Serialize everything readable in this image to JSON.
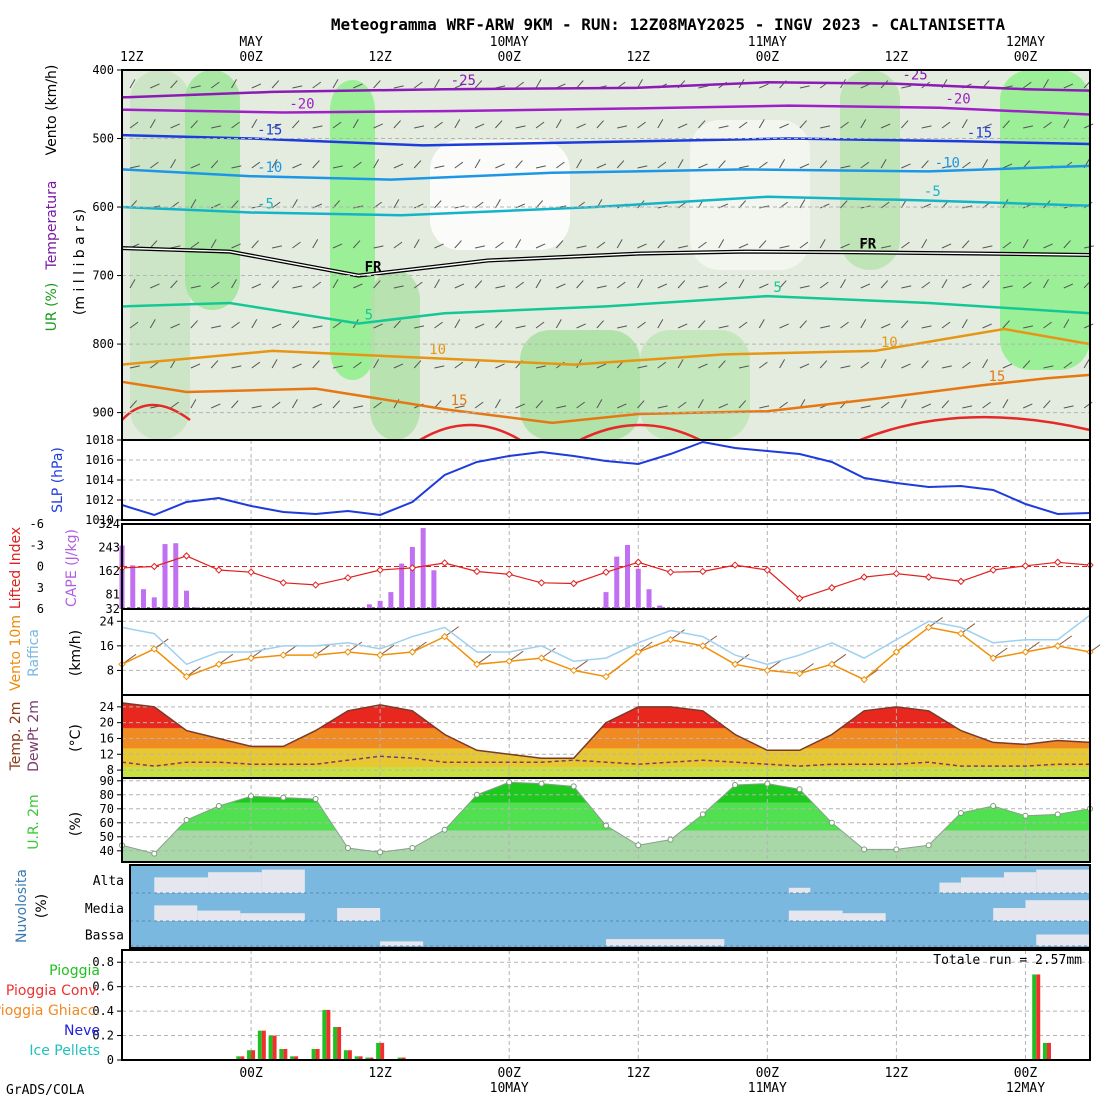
{
  "header": {
    "title": "Meteogramma WRF-ARW 9KM - RUN: 12Z08MAY2025 - INGV 2023 - CALTANISETTA",
    "footer": "GrADS/COLA"
  },
  "colors": {
    "panel_border": "#000000",
    "grid": "#b4b4b4",
    "slp": "#1e3cdc",
    "lifted": "#e02020",
    "cape": "#c070f0",
    "wind": "#f0900a",
    "gust": "#9fd0f0",
    "arrow": "#8a5a3a",
    "temp_top": "#e8281e",
    "temp_mid": "#f08a22",
    "temp_low": "#e8c832",
    "temp_base": "#c8e040",
    "dewpt": "#7a3c6c",
    "rh_top": "#1fc81f",
    "rh_mid": "#50e050",
    "rh_low": "#a8d8a8",
    "cloud_bg": "#7ab8e0",
    "cloud_fill": "#e6e6ee",
    "rain": "#20c020",
    "rain_conv": "#f03030",
    "freezing": "#f08a22",
    "snow": "#2020e0",
    "ice": "#20c0c0"
  },
  "time_axis": {
    "top_labels": [
      {
        "t": 0,
        "text": "12Z",
        "sub": ""
      },
      {
        "t": 12,
        "text": "00Z",
        "sub": "MAY"
      },
      {
        "t": 24,
        "text": "12Z",
        "sub": ""
      },
      {
        "t": 36,
        "text": "00Z",
        "sub": "10MAY"
      },
      {
        "t": 48,
        "text": "12Z",
        "sub": ""
      },
      {
        "t": 60,
        "text": "00Z",
        "sub": "11MAY"
      },
      {
        "t": 72,
        "text": "12Z",
        "sub": ""
      },
      {
        "t": 84,
        "text": "00Z",
        "sub": "12MAY"
      }
    ],
    "bottom_labels": [
      {
        "t": 12,
        "text": "00Z",
        "sub": ""
      },
      {
        "t": 24,
        "text": "12Z",
        "sub": ""
      },
      {
        "t": 36,
        "text": "00Z",
        "sub": "10MAY"
      },
      {
        "t": 48,
        "text": "12Z",
        "sub": ""
      },
      {
        "t": 60,
        "text": "00Z",
        "sub": "11MAY"
      },
      {
        "t": 72,
        "text": "12Z",
        "sub": ""
      },
      {
        "t": 84,
        "text": "00Z",
        "sub": "12MAY"
      }
    ],
    "range_hours": [
      0,
      90
    ]
  },
  "labels": {
    "upper": {
      "vento": "Vento (km/h)",
      "temp": "Temperatura",
      "ur": "UR (%)",
      "millibars": "(m i l l i b a r s)"
    },
    "slp": "SLP (hPa)",
    "li": "Lifted Index",
    "cape": "CAPE (J/kg)",
    "wind_a": "Vento 10m",
    "wind_b": "Raffica",
    "wind_u": "(km/h)",
    "temp_a": "Temp. 2m",
    "temp_b": "DewPt 2m",
    "temp_u": "(°C)",
    "rh": "U.R. 2m",
    "rh_u": "(%)",
    "cloud_title": "Nuvolosita",
    "cloud_u": "(%)",
    "cloud_levels": [
      "Alta",
      "Media",
      "Bassa"
    ],
    "precip_legend": [
      "Pioggia",
      "Pioggia Conv.",
      "Pioggia Ghiacc.",
      "Neve",
      "Ice Pellets"
    ],
    "precip_total": "Totale run = 2.57mm"
  },
  "chart_data": [
    {
      "type": "heatmap",
      "panel": "upper-air",
      "ylabel": "millibars",
      "ylim": [
        940,
        400
      ],
      "yticks": [
        400,
        500,
        600,
        700,
        800,
        900
      ],
      "isotherms": [
        {
          "value": -25,
          "label": "-25",
          "points": [
            [
              0,
              440
            ],
            [
              14,
              432
            ],
            [
              30,
              428
            ],
            [
              48,
              426
            ],
            [
              60,
              418
            ],
            [
              72,
              420
            ],
            [
              84,
              428
            ],
            [
              90,
              430
            ]
          ]
        },
        {
          "value": -20,
          "label": "-20",
          "points": [
            [
              0,
              458
            ],
            [
              15,
              462
            ],
            [
              30,
              460
            ],
            [
              48,
              456
            ],
            [
              62,
              452
            ],
            [
              76,
              455
            ],
            [
              90,
              465
            ]
          ]
        },
        {
          "value": -15,
          "label": "-15",
          "points": [
            [
              0,
              495
            ],
            [
              12,
              500
            ],
            [
              28,
              510
            ],
            [
              45,
              505
            ],
            [
              62,
              500
            ],
            [
              78,
              504
            ],
            [
              90,
              508
            ]
          ]
        },
        {
          "value": -10,
          "label": "-10",
          "points": [
            [
              0,
              545
            ],
            [
              12,
              555
            ],
            [
              25,
              560
            ],
            [
              40,
              550
            ],
            [
              58,
              545
            ],
            [
              75,
              548
            ],
            [
              90,
              540
            ]
          ]
        },
        {
          "value": -5,
          "label": "-5",
          "points": [
            [
              0,
              600
            ],
            [
              12,
              608
            ],
            [
              26,
              612
            ],
            [
              44,
              600
            ],
            [
              60,
              585
            ],
            [
              74,
              590
            ],
            [
              90,
              598
            ]
          ]
        },
        {
          "value": 0,
          "label": "FR",
          "points": [
            [
              0,
              660
            ],
            [
              10,
              665
            ],
            [
              22,
              700
            ],
            [
              34,
              678
            ],
            [
              48,
              668
            ],
            [
              58,
              665
            ],
            [
              68,
              666
            ],
            [
              80,
              668
            ],
            [
              90,
              670
            ]
          ]
        },
        {
          "value": 5,
          "label": "5",
          "points": [
            [
              0,
              745
            ],
            [
              10,
              740
            ],
            [
              22,
              770
            ],
            [
              30,
              755
            ],
            [
              45,
              745
            ],
            [
              60,
              730
            ],
            [
              75,
              740
            ],
            [
              90,
              755
            ]
          ]
        },
        {
          "value": 10,
          "label": "10",
          "points": [
            [
              0,
              830
            ],
            [
              14,
              810
            ],
            [
              28,
              820
            ],
            [
              42,
              830
            ],
            [
              56,
              815
            ],
            [
              70,
              810
            ],
            [
              82,
              778
            ],
            [
              90,
              800
            ]
          ]
        },
        {
          "value": 15,
          "label": "15",
          "points": [
            [
              0,
              855
            ],
            [
              6,
              870
            ],
            [
              18,
              865
            ],
            [
              30,
              895
            ],
            [
              40,
              915
            ],
            [
              48,
              902
            ],
            [
              60,
              898
            ],
            [
              70,
              880
            ],
            [
              80,
              860
            ],
            [
              86,
              850
            ],
            [
              90,
              845
            ]
          ]
        }
      ]
    },
    {
      "type": "line",
      "panel": "slp",
      "ylabel": "SLP (hPa)",
      "ylim": [
        1010,
        1018
      ],
      "yticks": [
        1010,
        1012,
        1014,
        1016,
        1018
      ],
      "x": [
        0,
        3,
        6,
        9,
        12,
        15,
        18,
        21,
        24,
        27,
        30,
        33,
        36,
        39,
        42,
        45,
        48,
        51,
        54,
        57,
        60,
        63,
        66,
        69,
        72,
        75,
        78,
        81,
        84,
        87,
        90
      ],
      "values": [
        1011.5,
        1010.5,
        1011.8,
        1012.2,
        1011.4,
        1010.8,
        1010.6,
        1010.9,
        1010.5,
        1011.8,
        1014.5,
        1015.8,
        1016.4,
        1016.8,
        1016.4,
        1015.9,
        1015.6,
        1016.6,
        1017.8,
        1017.2,
        1016.9,
        1016.6,
        1015.8,
        1014.2,
        1013.7,
        1013.3,
        1013.4,
        1013.0,
        1011.6,
        1010.6,
        1010.7
      ]
    },
    {
      "type": "bar",
      "panel": "cape",
      "ylabel": "CAPE (J/kg)",
      "ylim": [
        32,
        324
      ],
      "yticks": [
        32,
        81,
        162,
        243,
        324
      ],
      "x": [
        0,
        1,
        2,
        3,
        4,
        5,
        6,
        7,
        8,
        20,
        23,
        24,
        25,
        26,
        27,
        28,
        29,
        45,
        46,
        47,
        48,
        49,
        50
      ],
      "values": [
        250,
        182,
        100,
        72,
        255,
        258,
        95,
        38,
        33,
        33,
        48,
        60,
        90,
        188,
        245,
        310,
        165,
        90,
        212,
        252,
        170,
        100,
        44
      ]
    },
    {
      "type": "line",
      "panel": "lifted-index",
      "ylabel": "Lifted Index",
      "ylim": [
        6,
        -6
      ],
      "yticks": [
        -6,
        -3,
        0,
        3,
        6
      ],
      "x": [
        0,
        3,
        6,
        9,
        12,
        15,
        18,
        21,
        24,
        27,
        30,
        33,
        36,
        39,
        42,
        45,
        48,
        51,
        54,
        57,
        60,
        63,
        66,
        69,
        72,
        75,
        78,
        81,
        84,
        87,
        90
      ],
      "values": [
        0.2,
        0.0,
        -1.5,
        0.5,
        0.8,
        2.3,
        2.6,
        1.6,
        0.5,
        0.2,
        -0.5,
        0.7,
        1.1,
        2.3,
        2.4,
        0.8,
        -0.6,
        0.8,
        0.7,
        -0.2,
        0.5,
        4.5,
        3.0,
        1.5,
        1.0,
        1.5,
        2.1,
        0.5,
        -0.1,
        -0.6,
        -0.2
      ]
    },
    {
      "type": "line",
      "panel": "wind-10m",
      "ylabel": "(km/h)",
      "ylim": [
        0,
        28
      ],
      "yticks": [
        8,
        16,
        24
      ],
      "x": [
        0,
        3,
        6,
        9,
        12,
        15,
        18,
        21,
        24,
        27,
        30,
        33,
        36,
        39,
        42,
        45,
        48,
        51,
        54,
        57,
        60,
        63,
        66,
        69,
        72,
        75,
        78,
        81,
        84,
        87,
        90
      ],
      "series": [
        {
          "name": "Vento 10m",
          "values": [
            10,
            15,
            6,
            10,
            12,
            13,
            13,
            14,
            13,
            14,
            19,
            10,
            11,
            12,
            8,
            6,
            14,
            18,
            16,
            10,
            8,
            7,
            10,
            5,
            14,
            22,
            20,
            12,
            14,
            16,
            14
          ]
        },
        {
          "name": "Raffica",
          "values": [
            22,
            20,
            10,
            14,
            14,
            16,
            16,
            17,
            15,
            19,
            22,
            14,
            14,
            16,
            11,
            12,
            17,
            21,
            19,
            13,
            10,
            13,
            17,
            12,
            18,
            24,
            22,
            17,
            18,
            18,
            26
          ]
        }
      ]
    },
    {
      "type": "area",
      "panel": "temp-2m",
      "ylabel": "(°C)",
      "ylim": [
        6,
        27
      ],
      "yticks": [
        8,
        12,
        16,
        20,
        24
      ],
      "x": [
        0,
        3,
        6,
        9,
        12,
        15,
        18,
        21,
        24,
        27,
        30,
        33,
        36,
        39,
        42,
        45,
        48,
        51,
        54,
        57,
        60,
        63,
        66,
        69,
        72,
        75,
        78,
        81,
        84,
        87,
        90
      ],
      "series": [
        {
          "name": "Temp. 2m",
          "values": [
            25,
            24,
            18,
            16,
            14,
            14,
            18,
            23,
            24.5,
            23,
            17,
            13,
            12,
            11,
            11,
            20,
            24,
            24,
            23,
            17,
            13,
            13,
            17,
            23,
            24,
            23,
            18,
            15,
            14.5,
            15.5,
            15
          ]
        },
        {
          "name": "DewPt 2m",
          "values": [
            10,
            9,
            10,
            10,
            9.5,
            9.5,
            9.5,
            10.5,
            11.5,
            11,
            10,
            10,
            10,
            10,
            10.5,
            10,
            9.5,
            10,
            10.5,
            10,
            9.5,
            9,
            9.5,
            9.5,
            9.5,
            10,
            9,
            9,
            9,
            9.5,
            9.5
          ]
        }
      ]
    },
    {
      "type": "area",
      "panel": "rh-2m",
      "ylabel": "(%)",
      "ylim": [
        32,
        92
      ],
      "yticks": [
        40,
        50,
        60,
        70,
        80,
        90
      ],
      "x": [
        0,
        3,
        6,
        9,
        12,
        15,
        18,
        21,
        24,
        27,
        30,
        33,
        36,
        39,
        42,
        45,
        48,
        51,
        54,
        57,
        60,
        63,
        66,
        69,
        72,
        75,
        78,
        81,
        84,
        87,
        90
      ],
      "values": [
        44,
        38,
        62,
        72,
        79,
        78,
        77,
        42,
        39,
        42,
        55,
        80,
        89,
        88,
        86,
        58,
        44,
        48,
        66,
        87,
        88,
        84,
        60,
        41,
        41,
        44,
        67,
        72,
        65,
        66,
        70
      ]
    },
    {
      "type": "heatmap",
      "panel": "cloud-cover",
      "ylabel": "Nuvolosita (%)",
      "layers": [
        {
          "name": "Alta",
          "segments": [
            [
              3,
              8,
              60
            ],
            [
              8,
              13,
              80
            ],
            [
              13,
              17,
              90
            ],
            [
              62,
              64,
              20
            ],
            [
              76,
              78,
              40
            ],
            [
              78,
              82,
              60
            ],
            [
              82,
              85,
              80
            ],
            [
              85,
              90,
              90
            ]
          ]
        },
        {
          "name": "Media",
          "segments": [
            [
              3,
              7,
              60
            ],
            [
              7,
              11,
              40
            ],
            [
              11,
              17,
              30
            ],
            [
              20,
              24,
              50
            ],
            [
              62,
              67,
              40
            ],
            [
              67,
              71,
              30
            ],
            [
              81,
              84,
              50
            ],
            [
              84,
              90,
              80
            ]
          ]
        },
        {
          "name": "Bassa",
          "segments": [
            [
              24,
              28,
              20
            ],
            [
              45,
              56,
              30
            ],
            [
              85,
              90,
              50
            ]
          ]
        }
      ]
    },
    {
      "type": "bar",
      "panel": "precipitation",
      "ylim": [
        0,
        0.9
      ],
      "yticks": [
        0,
        0.2,
        0.4,
        0.6,
        0.8
      ],
      "x": [
        11,
        12,
        13,
        14,
        15,
        16,
        18,
        19,
        20,
        21,
        22,
        23,
        24,
        26,
        85,
        86
      ],
      "values": [
        0.03,
        0.08,
        0.24,
        0.2,
        0.09,
        0.03,
        0.09,
        0.41,
        0.27,
        0.08,
        0.03,
        0.02,
        0.14,
        0.02,
        0.7,
        0.14
      ]
    }
  ]
}
